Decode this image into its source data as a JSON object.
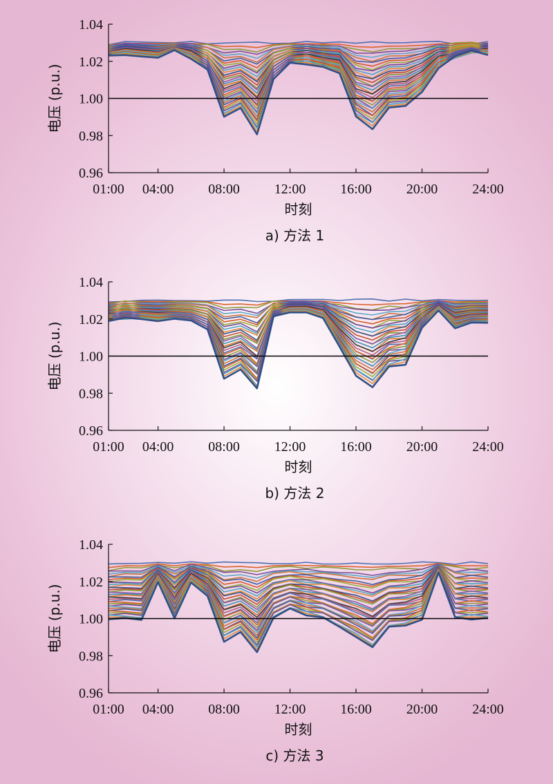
{
  "chart_data": [
    {
      "type": "line",
      "caption": "a) 方法 1",
      "xlabel": "时刻",
      "ylabel": "电压 (p.u.)",
      "ylim": [
        0.96,
        1.04
      ],
      "yticks": [
        "0.96",
        "0.98",
        "1.00",
        "1.02",
        "1.04"
      ],
      "xticks": [
        "01:00",
        "04:00",
        "08:00",
        "12:00",
        "16:00",
        "20:00",
        "24:00"
      ],
      "reference_line": 1.0,
      "grid": false,
      "series_count": 33,
      "upper_envelope": [
        1.029,
        1.03,
        1.03,
        1.03,
        1.03,
        1.03,
        1.03,
        1.03,
        1.03,
        1.03,
        1.03,
        1.03,
        1.03,
        1.03,
        1.03,
        1.03,
        1.03,
        1.03,
        1.03,
        1.03,
        1.03,
        1.03,
        1.03,
        1.03
      ],
      "lower_envelope": [
        1.023,
        1.024,
        1.023,
        1.022,
        1.026,
        1.022,
        1.015,
        0.99,
        0.995,
        0.981,
        1.01,
        1.019,
        1.019,
        1.017,
        1.014,
        0.99,
        0.984,
        0.995,
        0.996,
        1.004,
        1.017,
        1.022,
        1.025,
        1.024
      ]
    },
    {
      "type": "line",
      "caption": "b) 方法 2",
      "xlabel": "时刻",
      "ylabel": "电压 (p.u.)",
      "ylim": [
        0.96,
        1.04
      ],
      "yticks": [
        "0.96",
        "0.98",
        "1.00",
        "1.02",
        "1.04"
      ],
      "xticks": [
        "01:00",
        "04:00",
        "08:00",
        "12:00",
        "16:00",
        "20:00",
        "24:00"
      ],
      "reference_line": 1.0,
      "grid": false,
      "series_count": 33,
      "upper_envelope": [
        1.029,
        1.03,
        1.03,
        1.03,
        1.03,
        1.03,
        1.03,
        1.03,
        1.03,
        1.03,
        1.03,
        1.03,
        1.03,
        1.03,
        1.03,
        1.03,
        1.03,
        1.03,
        1.03,
        1.03,
        1.03,
        1.03,
        1.03,
        1.03
      ],
      "lower_envelope": [
        1.019,
        1.02,
        1.02,
        1.019,
        1.02,
        1.019,
        1.014,
        0.988,
        0.993,
        0.982,
        1.021,
        1.024,
        1.024,
        1.021,
        1.005,
        0.99,
        0.984,
        0.994,
        0.996,
        1.015,
        1.025,
        1.015,
        1.018,
        1.018
      ]
    },
    {
      "type": "line",
      "caption": "c) 方法 3",
      "xlabel": "时刻",
      "ylabel": "电压 (p.u.)",
      "ylim": [
        0.96,
        1.04
      ],
      "yticks": [
        "0.96",
        "0.98",
        "1.00",
        "1.02",
        "1.04"
      ],
      "xticks": [
        "01:00",
        "04:00",
        "08:00",
        "12:00",
        "16:00",
        "20:00",
        "24:00"
      ],
      "reference_line": 1.0,
      "grid": false,
      "series_count": 33,
      "upper_envelope": [
        1.029,
        1.03,
        1.03,
        1.03,
        1.03,
        1.03,
        1.03,
        1.03,
        1.03,
        1.03,
        1.03,
        1.03,
        1.03,
        1.03,
        1.03,
        1.03,
        1.03,
        1.03,
        1.03,
        1.03,
        1.03,
        1.03,
        1.03,
        1.03
      ],
      "lower_envelope": [
        1.0,
        1.0,
        0.999,
        1.02,
        1.0,
        1.02,
        1.012,
        0.988,
        0.993,
        0.982,
        1.0,
        1.005,
        1.002,
        1.0,
        0.995,
        0.99,
        0.984,
        0.995,
        0.996,
        1.0,
        1.025,
        1.0,
        1.0,
        1.0
      ]
    }
  ],
  "style": {
    "series_colors": [
      "#4e6fb0",
      "#d9622b",
      "#8e9a3a",
      "#7a4f9a",
      "#5aa7c7",
      "#c8733e",
      "#3f5f9e",
      "#d35a2a",
      "#9aae3c",
      "#6e4b93",
      "#4aa3bf",
      "#e08a3a",
      "#2f4f86",
      "#c44a2a",
      "#7f9a3a",
      "#8a5aa8",
      "#3a8fb0",
      "#d77a2e",
      "#3b3b3b",
      "#b35a7a"
    ],
    "axis_color": "#111111",
    "reference_line_color": "#000000"
  }
}
